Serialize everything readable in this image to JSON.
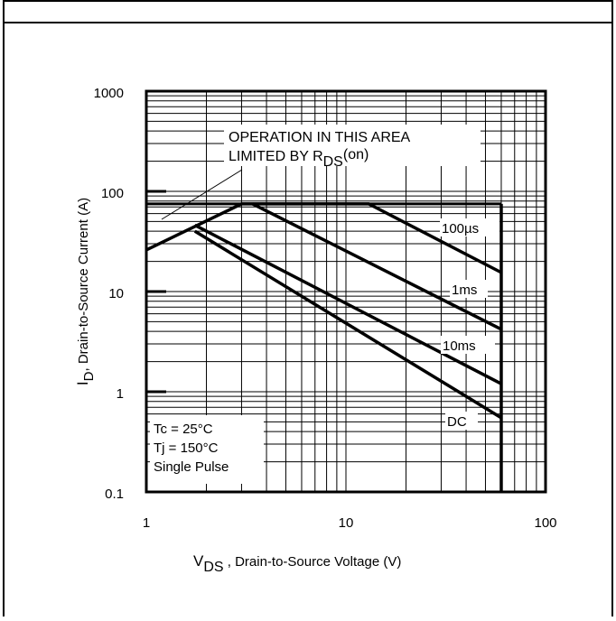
{
  "chart_data": {
    "type": "line",
    "x_scale": "log",
    "y_scale": "log",
    "xlim": [
      1,
      100
    ],
    "ylim": [
      0.1,
      1000
    ],
    "x_ticks": [
      "1",
      "10",
      "100"
    ],
    "y_ticks": [
      "1000",
      "100",
      "10",
      "1",
      "0.1"
    ],
    "grid": true,
    "xlabel": {
      "main": "V",
      "sub": "DS",
      "rest": " , Drain-to-Source Voltage (V)"
    },
    "ylabel": {
      "main": "I",
      "sub": "D",
      "rest": ",  Drain-to-Source Current (A)"
    },
    "annotation": {
      "line1": "OPERATION IN THIS AREA",
      "line2_main": "LIMITED BY R",
      "line2_sub": "DS",
      "line2_rest": "(on)"
    },
    "conditions": [
      "Tc = 25°C",
      "Tj = 150°C",
      "Single Pulse"
    ],
    "limits": {
      "max_current": 75,
      "max_voltage": 60
    },
    "series": [
      {
        "name": "R_DS(on) limit",
        "points": [
          [
            1,
            26
          ],
          [
            3,
            75
          ]
        ]
      },
      {
        "name": "100µs",
        "points": [
          [
            3,
            75
          ],
          [
            13,
            75
          ],
          [
            60,
            15.5
          ]
        ]
      },
      {
        "name": "1ms",
        "points": [
          [
            3.4,
            75
          ],
          [
            60,
            4.2
          ]
        ]
      },
      {
        "name": "10ms",
        "points": [
          [
            1.75,
            46
          ],
          [
            60,
            1.2
          ]
        ]
      },
      {
        "name": "DC",
        "points": [
          [
            1.75,
            40
          ],
          [
            60,
            0.55
          ]
        ]
      },
      {
        "name": "Vds limit",
        "points": [
          [
            60,
            75
          ],
          [
            60,
            0.1
          ]
        ]
      }
    ],
    "series_labels": [
      "100µs",
      "1ms",
      "10ms",
      "DC"
    ]
  }
}
